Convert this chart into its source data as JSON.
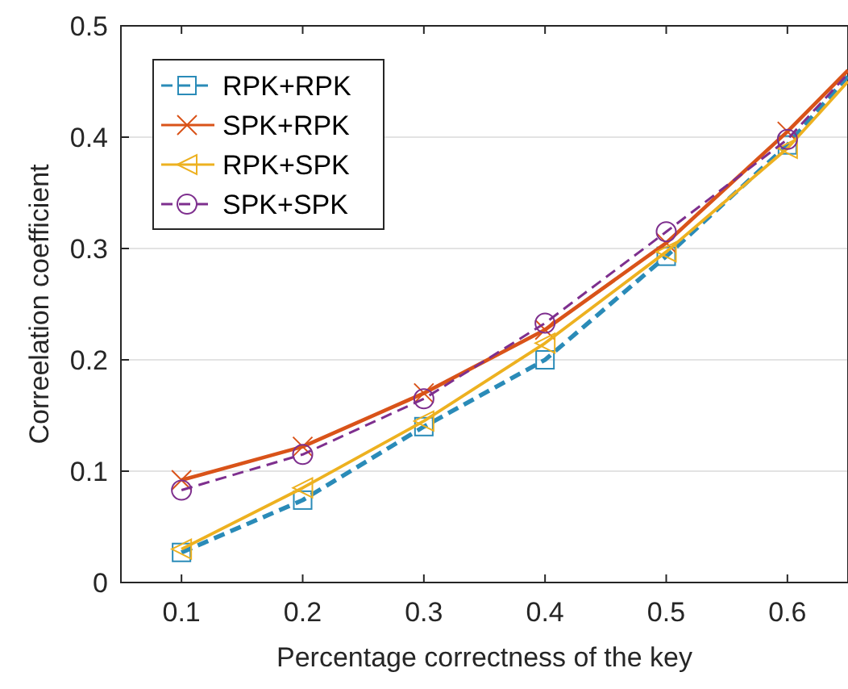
{
  "chart_data": {
    "type": "line",
    "xlabel": "Percentage correctness of the key",
    "ylabel": "Correelation coefficient",
    "x": [
      0.1,
      0.2,
      0.3,
      0.4,
      0.5,
      0.6,
      0.65
    ],
    "xlim": [
      0.05,
      0.65
    ],
    "xticks": [
      0.1,
      0.2,
      0.3,
      0.4,
      0.5,
      0.6
    ],
    "ylim": [
      0,
      0.5
    ],
    "yticks": [
      0,
      0.1,
      0.2,
      0.3,
      0.4,
      0.5
    ],
    "grid": "y",
    "legend": "top left",
    "series": [
      {
        "name": "RPK+RPK",
        "color": "#2a8bb8",
        "values": [
          0.027,
          0.074,
          0.14,
          0.2,
          0.293,
          0.393,
          0.455
        ],
        "marker": "square",
        "line_style": "dashed"
      },
      {
        "name": "SPK+RPK",
        "color": "#d95319",
        "values": [
          0.092,
          0.122,
          0.17,
          0.227,
          0.305,
          0.405,
          0.46
        ],
        "marker": "cross",
        "line_style": "solid"
      },
      {
        "name": "RPK+SPK",
        "color": "#edb120",
        "values": [
          0.03,
          0.085,
          0.145,
          0.215,
          0.297,
          0.39,
          0.45
        ],
        "marker": "triangle",
        "line_style": "solid"
      },
      {
        "name": "SPK+SPK",
        "color": "#7e2f8e",
        "values": [
          0.083,
          0.115,
          0.165,
          0.233,
          0.315,
          0.398,
          0.457
        ],
        "marker": "circle",
        "line_style": "dashed"
      }
    ]
  }
}
